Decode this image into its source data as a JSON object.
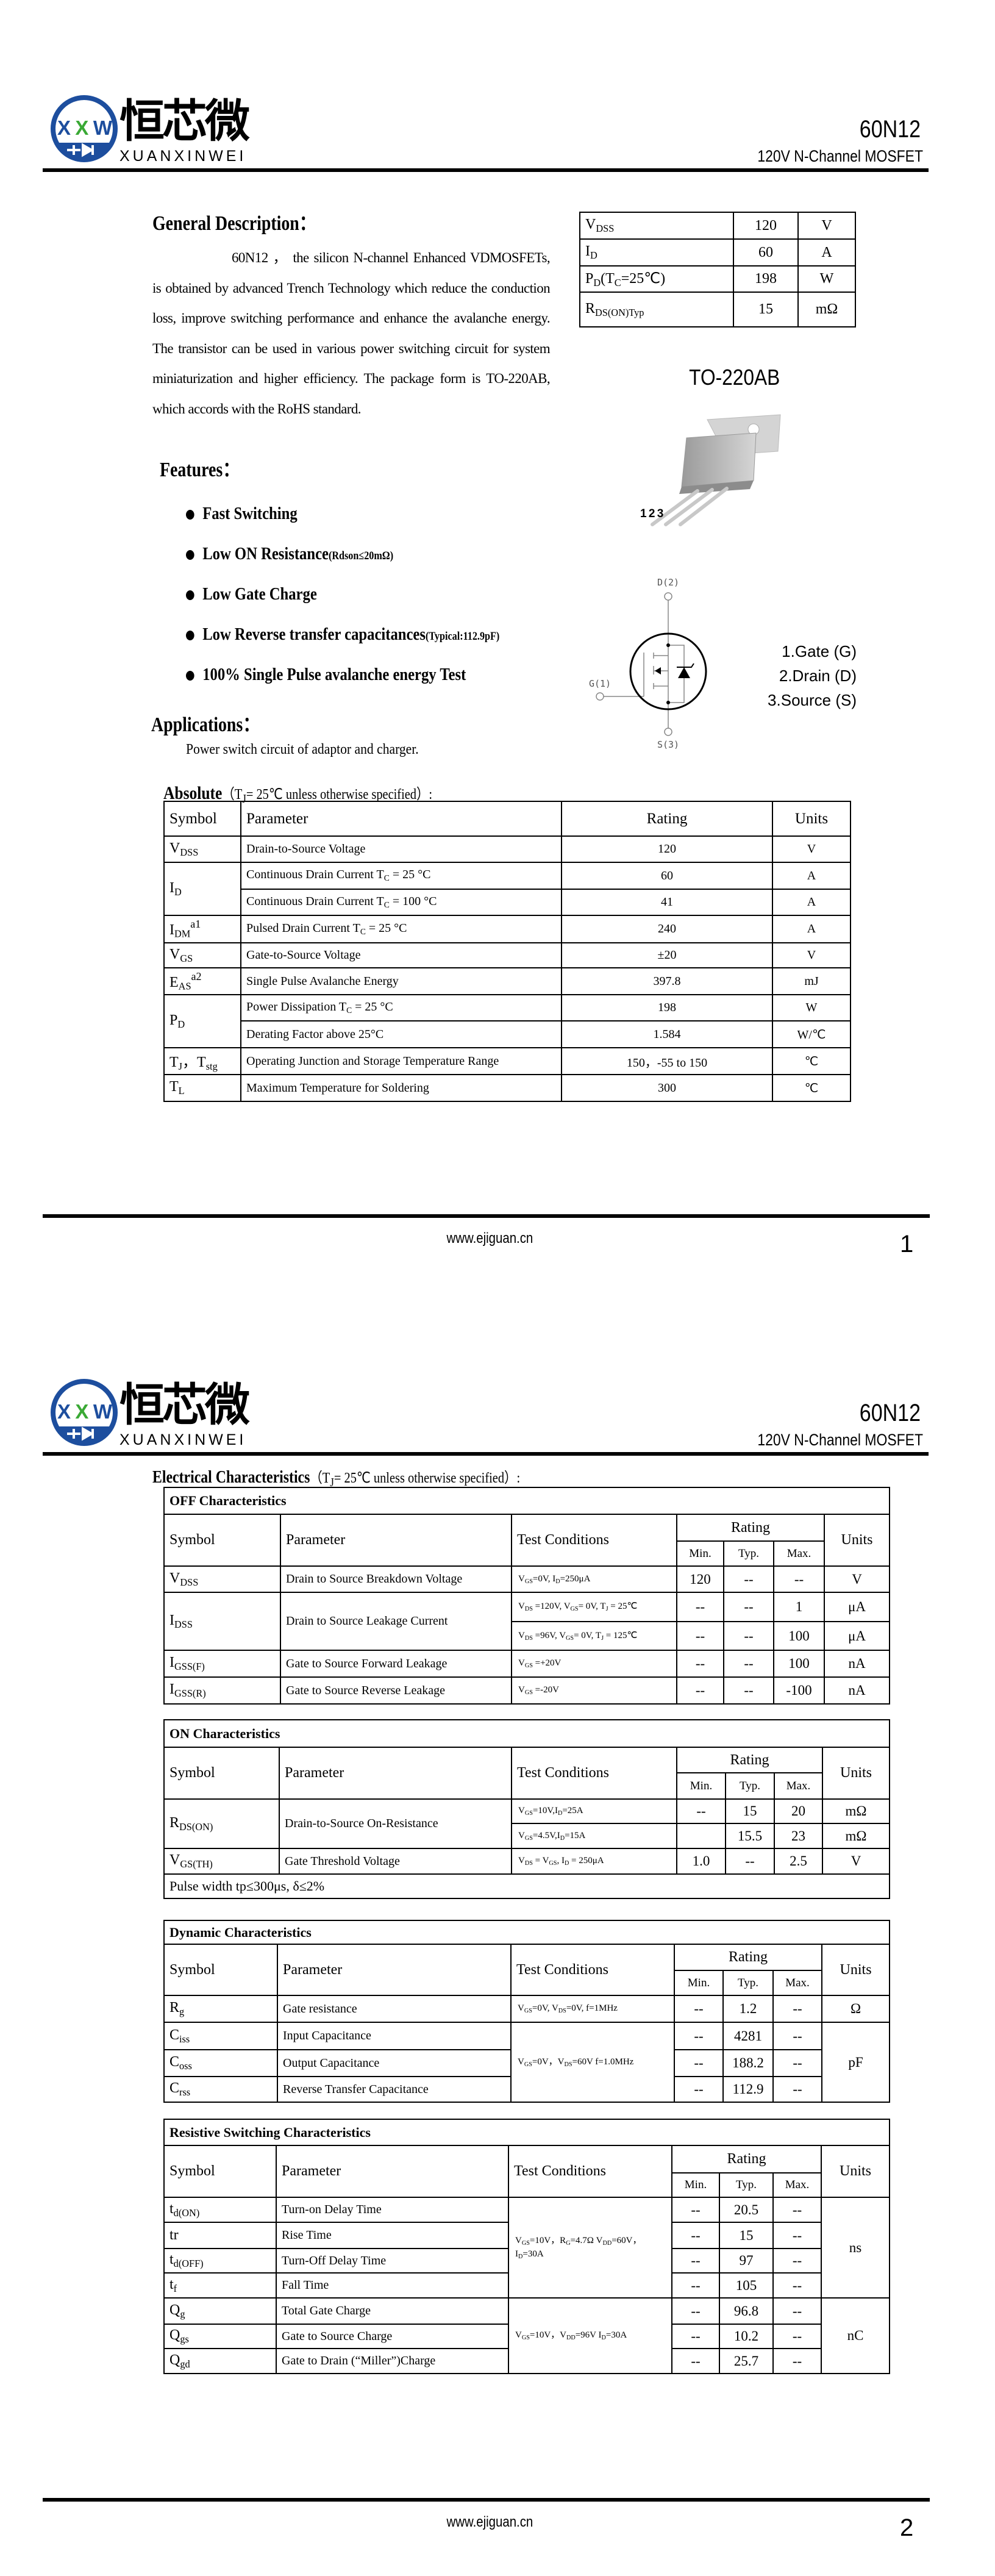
{
  "header": {
    "logo_cn": "恒芯微",
    "logo_en": "XUANXINWEI",
    "logo_mark": "XXW",
    "part_number": "60N12",
    "subtitle": "120V N-Channel MOSFET",
    "brand_colors": {
      "blue": "#1d4e9e",
      "green": "#3aa935"
    }
  },
  "general_description": {
    "title": "General Description：",
    "text": "60N12 ， the silicon N-channel Enhanced VDMOSFETs, is obtained by advanced Trench Technology which reduce the conduction loss, improve switching performance and enhance the avalanche energy. The transistor can be used in various power switching circuit for system miniaturization and higher efficiency. The package form is TO-220AB, which accords with the RoHS standard."
  },
  "summary_table": [
    {
      "symbol": "V_{DSS}",
      "value": "120",
      "unit": "V"
    },
    {
      "symbol": "I_{D}",
      "value": "60",
      "unit": "A"
    },
    {
      "symbol": "P_{D}(T_{C}=25℃)",
      "value": "198",
      "unit": "W"
    },
    {
      "symbol": "R_{DS(ON)Typ}",
      "value": "15",
      "unit": "mΩ"
    }
  ],
  "package": {
    "name": "TO-220AB",
    "pin_numbers": "1 2 3"
  },
  "schematic": {
    "drain": "D(2)",
    "gate": "G(1)",
    "source": "S(3)"
  },
  "pins": [
    "1.Gate (G)",
    "2.Drain (D)",
    "3.Source (S)"
  ],
  "features": {
    "title": "Features：",
    "items": [
      {
        "label": "Fast Switching",
        "note": ""
      },
      {
        "label": "Low ON Resistance",
        "note": "(Rdson≤20mΩ)"
      },
      {
        "label": "Low Gate Charge",
        "note": ""
      },
      {
        "label": "Low Reverse transfer capacitances",
        "note": "(Typical:112.9pF)"
      },
      {
        "label": "100% Single Pulse avalanche energy Test",
        "note": ""
      }
    ]
  },
  "applications": {
    "title": "Applications：",
    "text": "Power switch circuit of adaptor and charger."
  },
  "absolute": {
    "title": "Absolute",
    "condition": "（T_{J}= 25℃  unless otherwise specified）:",
    "headers": [
      "Symbol",
      "Parameter",
      "Rating",
      "Units"
    ],
    "rows": [
      [
        {
          "text": "V_{DSS}"
        },
        "Drain-to-Source Voltage",
        "120",
        "V"
      ],
      [
        {
          "text": "I_{D}",
          "rowspan": 2
        },
        "Continuous Drain Current T_{C} = 25 °C",
        "60",
        "A"
      ],
      [
        "Continuous Drain Current T_{C} = 100 °C",
        "41",
        "A"
      ],
      [
        {
          "text": "I_{DM}^{a1}"
        },
        "Pulsed Drain Current T_{C} = 25 °C",
        "240",
        "A"
      ],
      [
        {
          "text": "V_{GS}"
        },
        "Gate-to-Source Voltage",
        "±20",
        "V"
      ],
      [
        {
          "text": "E_{AS}^{a2}"
        },
        "Single Pulse Avalanche Energy",
        "397.8",
        "mJ"
      ],
      [
        {
          "text": "P_{D}",
          "rowspan": 2
        },
        "Power Dissipation T_{C} = 25 °C",
        "198",
        "W"
      ],
      [
        "Derating Factor above 25°C",
        "1.584",
        "W/℃"
      ],
      [
        {
          "text": "T_{J}，T_{stg}"
        },
        "Operating Junction and Storage Temperature Range",
        "150，-55 to 150",
        "℃"
      ],
      [
        {
          "text": "T_{L}"
        },
        "Maximum Temperature for Soldering",
        "300",
        "℃"
      ]
    ]
  },
  "electrical": {
    "title": "Electrical Characteristics",
    "condition": "（T_{J}= 25℃  unless otherwise specified）:",
    "headers": {
      "symbol": "Symbol",
      "parameter": "Parameter",
      "conditions": "Test Conditions",
      "rating": "Rating",
      "min": "Min.",
      "typ": "Typ.",
      "max": "Max.",
      "units": "Units"
    },
    "sections": [
      {
        "title": "OFF Characteristics",
        "rows": [
          [
            "V_{DSS}",
            "Drain to Source Breakdown Voltage",
            "V_{GS}=0V, I_{D}=250μA",
            "120",
            "--",
            "--",
            "V"
          ],
          [
            {
              "text": "I_{DSS}",
              "rowspan": 2
            },
            {
              "text": "Drain to Source Leakage Current",
              "rowspan": 2
            },
            "V_{DS} =120V, V_{GS}= 0V, T_{J} = 25℃",
            "--",
            "--",
            "1",
            "μA"
          ],
          [
            "V_{DS} =96V, V_{GS}= 0V, T_{J} = 125℃",
            "--",
            "--",
            "100",
            "μA"
          ],
          [
            "I_{GSS(F)}",
            "Gate to Source Forward Leakage",
            "V_{GS} =+20V",
            "--",
            "--",
            "100",
            "nA"
          ],
          [
            "I_{GSS(R)}",
            "Gate to Source Reverse Leakage",
            "V_{GS} =-20V",
            "--",
            "--",
            "-100",
            "nA"
          ]
        ]
      },
      {
        "title": "ON Characteristics",
        "rows": [
          [
            {
              "text": "R_{DS(ON)}",
              "rowspan": 2
            },
            {
              "text": "Drain-to-Source On-Resistance",
              "rowspan": 2
            },
            "V_{GS}=10V,I_{D}=25A",
            "--",
            "15",
            "20",
            "mΩ"
          ],
          [
            "V_{GS}=4.5V,I_{D}=15A",
            "",
            "15.5",
            "23",
            "mΩ"
          ],
          [
            "V_{GS(TH)}",
            "Gate Threshold Voltage",
            "V_{DS} = V_{GS}, I_{D} = 250μA",
            "1.0",
            "--",
            "2.5",
            "V"
          ]
        ],
        "note": "Pulse width tp≤300μs, δ≤2%"
      },
      {
        "title": "Dynamic Characteristics",
        "rows": [
          [
            "R_{g}",
            "Gate resistance",
            "V_{GS}=0V, V_{DS}=0V, f=1MHz",
            "--",
            "1.2",
            "--",
            "Ω"
          ],
          [
            "C_{iss}",
            "Input Capacitance",
            {
              "text": "V_{GS}=0V，V_{DS}=60V f=1.0MHz",
              "rowspan": 3
            },
            "--",
            "4281",
            "--",
            {
              "text": "pF",
              "rowspan": 3
            }
          ],
          [
            "C_{oss}",
            "Output Capacitance",
            "--",
            "188.2",
            "--"
          ],
          [
            "C_{rss}",
            "Reverse Transfer Capacitance",
            "--",
            "112.9",
            "--"
          ]
        ]
      },
      {
        "title": "Resistive Switching Characteristics",
        "rows": [
          [
            "t_{d(ON)}",
            "Turn-on Delay Time",
            {
              "text": "V_{GS}=10V，R_{G}=4.7Ω V_{DD}=60V，I_{D}=30A",
              "rowspan": 4
            },
            "--",
            "20.5",
            "--",
            {
              "text": "ns",
              "rowspan": 4
            }
          ],
          [
            "tr",
            "Rise Time",
            "--",
            "15",
            "--"
          ],
          [
            "t_{d(OFF)}",
            "Turn-Off Delay Time",
            "--",
            "97",
            "--"
          ],
          [
            "t_{f}",
            "Fall Time",
            "--",
            "105",
            "--"
          ],
          [
            "Q_{g}",
            "Total Gate Charge",
            {
              "text": "V_{GS}=10V，V_{DD}=96V I_{D}=30A",
              "rowspan": 3
            },
            "--",
            "96.8",
            "--",
            {
              "text": "nC",
              "rowspan": 3
            }
          ],
          [
            "Q_{gs}",
            "Gate to Source Charge",
            "--",
            "10.2",
            "--"
          ],
          [
            "Q_{gd}",
            "Gate to Drain (“Miller”)Charge",
            "--",
            "25.7",
            "--"
          ]
        ]
      }
    ]
  },
  "footer": {
    "website": "www.ejiguan.cn",
    "page1": "1",
    "page2": "2"
  }
}
